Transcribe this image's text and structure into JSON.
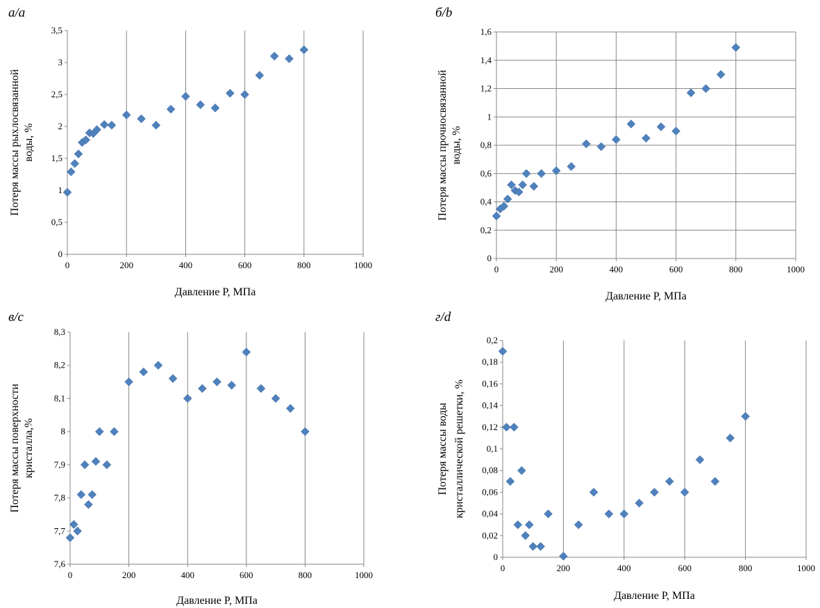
{
  "colors": {
    "marker": "#4f81bd",
    "grid": "#868686",
    "axis": "#868686"
  },
  "chart_data": [
    {
      "panel_label": "а/a",
      "type": "scatter",
      "xlabel": "Давление P, МПа",
      "ylabel_lines": [
        "Потеря массы рыхлосвязанной",
        "воды, %"
      ],
      "xlim": [
        0,
        1000
      ],
      "ylim": [
        0,
        3.5
      ],
      "xticks": [
        0,
        200,
        400,
        600,
        800,
        1000
      ],
      "yticks": [
        0,
        0.5,
        1,
        1.5,
        2,
        2.5,
        3,
        3.5
      ],
      "xtick_labels": [
        "0",
        "200",
        "400",
        "600",
        "800",
        "1000"
      ],
      "ytick_labels": [
        "0",
        "0,5",
        "1",
        "1,5",
        "2",
        "2,5",
        "3",
        "3,5"
      ],
      "grid": "vertical",
      "points": [
        [
          0,
          0.97
        ],
        [
          12.5,
          1.29
        ],
        [
          25,
          1.42
        ],
        [
          37.5,
          1.57
        ],
        [
          50,
          1.75
        ],
        [
          62.5,
          1.79
        ],
        [
          75,
          1.9
        ],
        [
          87.5,
          1.89
        ],
        [
          100,
          1.95
        ],
        [
          125,
          2.03
        ],
        [
          150,
          2.02
        ],
        [
          200,
          2.18
        ],
        [
          250,
          2.12
        ],
        [
          300,
          2.02
        ],
        [
          350,
          2.27
        ],
        [
          400,
          2.47
        ],
        [
          450,
          2.34
        ],
        [
          500,
          2.29
        ],
        [
          550,
          2.52
        ],
        [
          600,
          2.5
        ],
        [
          650,
          2.8
        ],
        [
          700,
          3.1
        ],
        [
          750,
          3.06
        ],
        [
          800,
          3.2
        ]
      ]
    },
    {
      "panel_label": "б/b",
      "type": "scatter",
      "xlabel": "Давление P, МПа",
      "ylabel_lines": [
        "Потеря массы прочносвязанной",
        "воды, %"
      ],
      "xlim": [
        0,
        1000
      ],
      "ylim": [
        0,
        1.6
      ],
      "xticks": [
        0,
        200,
        400,
        600,
        800,
        1000
      ],
      "yticks": [
        0,
        0.2,
        0.4,
        0.6,
        0.8,
        1,
        1.2,
        1.4,
        1.6
      ],
      "xtick_labels": [
        "0",
        "200",
        "400",
        "600",
        "800",
        "1000"
      ],
      "ytick_labels": [
        "0",
        "0,2",
        "0,4",
        "0,6",
        "0,8",
        "1",
        "1,2",
        "1,4",
        "1,6"
      ],
      "grid": "both",
      "points": [
        [
          0,
          0.3
        ],
        [
          12.5,
          0.35
        ],
        [
          25,
          0.37
        ],
        [
          37.5,
          0.42
        ],
        [
          50,
          0.52
        ],
        [
          62.5,
          0.48
        ],
        [
          75,
          0.47
        ],
        [
          87.5,
          0.52
        ],
        [
          100,
          0.6
        ],
        [
          125,
          0.51
        ],
        [
          150,
          0.6
        ],
        [
          200,
          0.62
        ],
        [
          250,
          0.65
        ],
        [
          300,
          0.81
        ],
        [
          350,
          0.79
        ],
        [
          400,
          0.84
        ],
        [
          450,
          0.95
        ],
        [
          500,
          0.85
        ],
        [
          550,
          0.93
        ],
        [
          600,
          0.9
        ],
        [
          650,
          1.17
        ],
        [
          700,
          1.2
        ],
        [
          750,
          1.3
        ],
        [
          800,
          1.49
        ]
      ]
    },
    {
      "panel_label": "в/c",
      "type": "scatter",
      "xlabel": "Давление P, МПа",
      "ylabel_lines": [
        "Потеря массы поверхности",
        "кристалла,%"
      ],
      "xlim": [
        0,
        1000
      ],
      "ylim": [
        7.6,
        8.3
      ],
      "xticks": [
        0,
        200,
        400,
        600,
        800,
        1000
      ],
      "yticks": [
        7.6,
        7.7,
        7.8,
        7.9,
        8,
        8.1,
        8.2,
        8.3
      ],
      "xtick_labels": [
        "0",
        "200",
        "400",
        "600",
        "800",
        "1000"
      ],
      "ytick_labels": [
        "7,6",
        "7,7",
        "7,8",
        "7,9",
        "8",
        "8,1",
        "8,2",
        "8,3"
      ],
      "grid": "vertical",
      "points": [
        [
          0,
          7.68
        ],
        [
          12.5,
          7.72
        ],
        [
          25,
          7.7
        ],
        [
          37.5,
          7.81
        ],
        [
          50,
          7.9
        ],
        [
          62.5,
          7.78
        ],
        [
          75,
          7.81
        ],
        [
          87.5,
          7.91
        ],
        [
          100,
          8.0
        ],
        [
          125,
          7.9
        ],
        [
          150,
          8.0
        ],
        [
          200,
          8.15
        ],
        [
          250,
          8.18
        ],
        [
          300,
          8.2
        ],
        [
          350,
          8.16
        ],
        [
          400,
          8.1
        ],
        [
          450,
          8.13
        ],
        [
          500,
          8.15
        ],
        [
          550,
          8.14
        ],
        [
          600,
          8.24
        ],
        [
          650,
          8.13
        ],
        [
          700,
          8.1
        ],
        [
          750,
          8.07
        ],
        [
          800,
          8.0
        ]
      ]
    },
    {
      "panel_label": "г/d",
      "type": "scatter",
      "xlabel": "Давление P, МПа",
      "ylabel_lines": [
        "Потеря массы воды",
        "кристаллической решетки, %"
      ],
      "xlim": [
        0,
        1000
      ],
      "ylim": [
        0,
        0.2
      ],
      "xticks": [
        0,
        200,
        400,
        600,
        800,
        1000
      ],
      "yticks": [
        0,
        0.02,
        0.04,
        0.06,
        0.08,
        0.1,
        0.12,
        0.14,
        0.16,
        0.18,
        0.2
      ],
      "xtick_labels": [
        "0",
        "200",
        "400",
        "600",
        "800",
        "1000"
      ],
      "ytick_labels": [
        "0",
        "0,02",
        "0,04",
        "0,06",
        "0,08",
        "0,1",
        "0,12",
        "0,14",
        "0,16",
        "0,18",
        "0,2"
      ],
      "grid": "vertical",
      "points": [
        [
          0,
          0.19
        ],
        [
          12.5,
          0.12
        ],
        [
          25,
          0.07
        ],
        [
          37.5,
          0.12
        ],
        [
          50,
          0.03
        ],
        [
          62.5,
          0.08
        ],
        [
          75,
          0.02
        ],
        [
          87.5,
          0.03
        ],
        [
          100,
          0.01
        ],
        [
          125,
          0.01
        ],
        [
          150,
          0.04
        ],
        [
          200,
          0.001
        ],
        [
          250,
          0.03
        ],
        [
          300,
          0.06
        ],
        [
          350,
          0.04
        ],
        [
          400,
          0.04
        ],
        [
          450,
          0.05
        ],
        [
          500,
          0.06
        ],
        [
          550,
          0.07
        ],
        [
          600,
          0.06
        ],
        [
          650,
          0.09
        ],
        [
          700,
          0.07
        ],
        [
          750,
          0.11
        ],
        [
          800,
          0.13
        ]
      ]
    }
  ]
}
